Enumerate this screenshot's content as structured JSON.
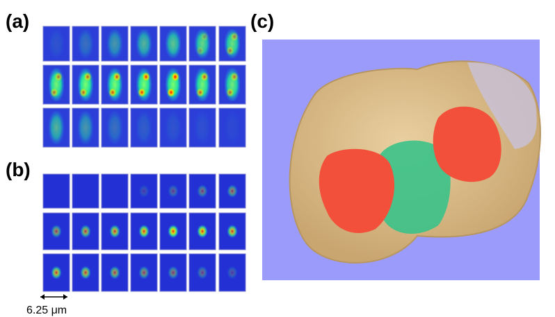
{
  "panels": {
    "a": {
      "label": "(a)"
    },
    "b": {
      "label": "(b)"
    },
    "c": {
      "label": "(c)"
    }
  },
  "scale_bar": {
    "label": "6.25 μm"
  }
}
